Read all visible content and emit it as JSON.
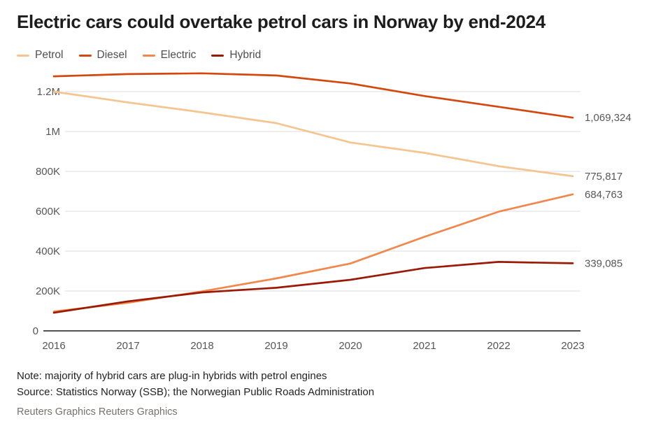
{
  "page": {
    "title": "Electric cars could overtake petrol cars in Norway by end-2024"
  },
  "chart_data": {
    "type": "line",
    "title": "Electric cars could overtake petrol cars in Norway by end-2024",
    "x": [
      2016,
      2017,
      2018,
      2019,
      2020,
      2021,
      2022,
      2023
    ],
    "xlabel": "",
    "ylabel": "",
    "ylim": [
      0,
      1300000
    ],
    "grid": true,
    "legend_position": "top-left",
    "yticks": [
      {
        "value": 0,
        "label": "0"
      },
      {
        "value": 200000,
        "label": "200K"
      },
      {
        "value": 400000,
        "label": "400K"
      },
      {
        "value": 600000,
        "label": "600K"
      },
      {
        "value": 800000,
        "label": "800K"
      },
      {
        "value": 1000000,
        "label": "1M"
      },
      {
        "value": 1200000,
        "label": "1.2M"
      }
    ],
    "series": [
      {
        "name": "Petrol",
        "color": "#F6C48E",
        "values": [
          1200000,
          1146000,
          1096000,
          1042000,
          945000,
          893000,
          826000,
          775817
        ],
        "end_label": "775,817"
      },
      {
        "name": "Diesel",
        "color": "#D3480E",
        "values": [
          1277000,
          1288000,
          1292000,
          1281000,
          1241000,
          1178000,
          1124000,
          1069324
        ],
        "end_label": "1,069,324"
      },
      {
        "name": "Electric",
        "color": "#F1874B",
        "values": [
          97000,
          141000,
          198000,
          263000,
          338000,
          472000,
          598000,
          684763
        ],
        "end_label": "684,763"
      },
      {
        "name": "Hybrid",
        "color": "#991B06",
        "values": [
          91000,
          148000,
          193000,
          216000,
          256000,
          315000,
          346000,
          339085
        ],
        "end_label": "339,085"
      }
    ]
  },
  "footer": {
    "note": "Note: majority of hybrid cars are plug-in hybrids with petrol engines",
    "source": "Source: Statistics Norway (SSB); the Norwegian Public Roads Administration",
    "credit": "Reuters Graphics Reuters Graphics"
  }
}
